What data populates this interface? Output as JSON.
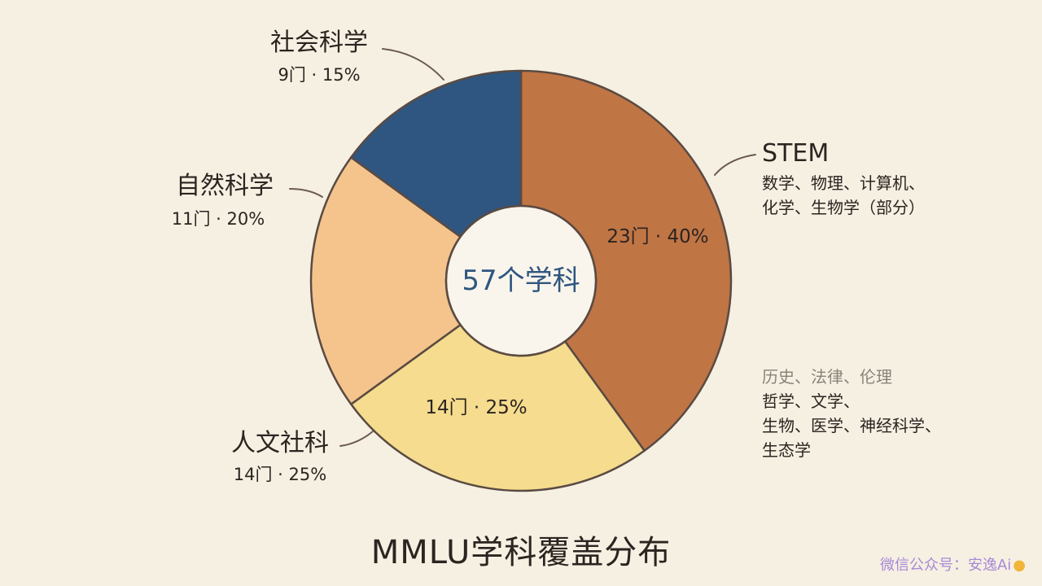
{
  "chart_data": {
    "type": "pie",
    "title": "MMLU学科覆盖分布",
    "center_label": "57个学科",
    "slices": [
      {
        "name": "STEM",
        "value": 40,
        "count_label": "23门 · 40%",
        "color": "#c07545",
        "description": [
          "数学、物理、计算机、",
          "化学、生物学（部分）"
        ]
      },
      {
        "name": "人文社科",
        "value": 25,
        "count_label": "14门 · 25%",
        "color": "#f5dc8e",
        "description_muted": "历史、法律、伦理",
        "description": [
          "哲学、文学、",
          "生物、医学、神经科学、",
          "生态学"
        ]
      },
      {
        "name": "自然科学",
        "value": 20,
        "count_label": "11门 · 20%",
        "color": "#f4c48c"
      },
      {
        "name": "社会科学",
        "value": 15,
        "count_label": "9门 · 15%",
        "color": "#2f5680"
      }
    ],
    "inner_slice_labels": {
      "STEM": "23门 · 40%",
      "人文社科": "14门 · 25%"
    }
  },
  "watermark": {
    "text": "微信公众号：安逸Ai",
    "icon": "duck-icon"
  }
}
